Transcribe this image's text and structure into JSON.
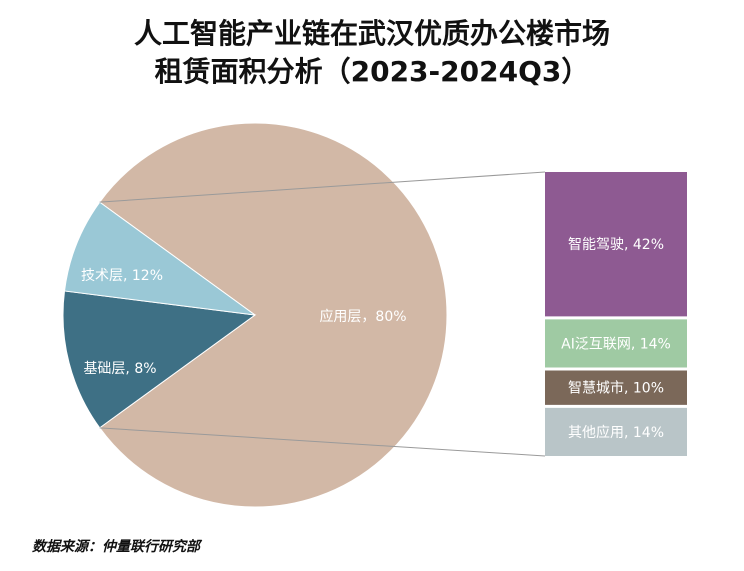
{
  "title_line1": "人工智能产业链在武汉优质办公楼市场",
  "title_line2": "租赁面积分析（2023-2024Q3）",
  "source": "数据来源：仲量联行研究部",
  "colors": {
    "application": "#d2b8a6",
    "tech": "#3e7085",
    "base": "#9ac8d6",
    "autonomous": "#8e5a92",
    "aiot": "#9fcaa3",
    "smart_city": "#7b6859",
    "other_app": "#b9c5c8",
    "connector": "#9a9a9a"
  },
  "chart_data": {
    "type": "pie",
    "pie": [
      {
        "label": "应用层",
        "value": 80,
        "text": "应用层，80%",
        "color_key": "application",
        "text_color": "#ffffff"
      },
      {
        "label": "技术层",
        "value": 12,
        "text": "技术层, 12%",
        "color_key": "tech",
        "text_color": "#ffffff"
      },
      {
        "label": "基础层",
        "value": 8,
        "text": "基础层, 8%",
        "color_key": "base",
        "text_color": "#ffffff"
      }
    ],
    "breakdown_of": "应用层",
    "breakdown": [
      {
        "label": "智能驾驶",
        "value": 42,
        "text": "智能驾驶, 42%",
        "color_key": "autonomous",
        "text_color": "#ffffff"
      },
      {
        "label": "AI泛互联网",
        "value": 14,
        "text": "AI泛互联网, 14%",
        "color_key": "aiot",
        "text_color": "#ffffff"
      },
      {
        "label": "智慧城市",
        "value": 10,
        "text": "智慧城市, 10%",
        "color_key": "smart_city",
        "text_color": "#ffffff"
      },
      {
        "label": "其他应用",
        "value": 14,
        "text": "其他应用, 14%",
        "color_key": "other_app",
        "text_color": "#ffffff"
      }
    ]
  }
}
